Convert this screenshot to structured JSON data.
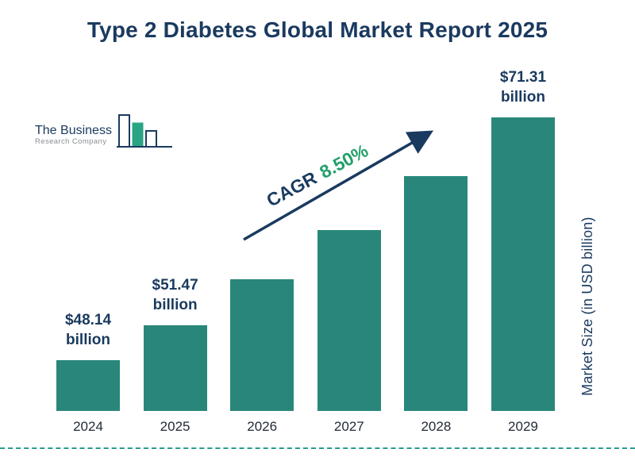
{
  "title": "Type 2 Diabetes Global Market Report 2025",
  "logo": {
    "line1": "The Business",
    "line2": "Research Company"
  },
  "cagr": {
    "label": "CAGR",
    "value": "8.50%"
  },
  "y_axis_label": "Market Size (in USD billion)",
  "colors": {
    "bar": "#28877a",
    "title_navy": "#1a3a5f",
    "cagr_green": "#22a06b",
    "arrow_navy": "#1a3a5f",
    "dashed_line": "#2a9d8f"
  },
  "chart_data": {
    "type": "bar",
    "title": "Type 2 Diabetes Global Market Report 2025",
    "xlabel": "",
    "ylabel": "Market Size (in USD billion)",
    "categories": [
      "2024",
      "2025",
      "2026",
      "2027",
      "2028",
      "2029"
    ],
    "values": [
      48.14,
      51.47,
      55.85,
      60.59,
      65.74,
      71.31
    ],
    "value_labels": [
      {
        "amount": "$48.14",
        "unit": "billion"
      },
      {
        "amount": "$51.47",
        "unit": "billion"
      },
      null,
      null,
      null,
      {
        "amount": "$71.31",
        "unit": "billion"
      }
    ],
    "bar_color": "#28877a",
    "cagr": "8.50%",
    "ylim": [
      44,
      75
    ],
    "grid": false,
    "legend": false
  }
}
